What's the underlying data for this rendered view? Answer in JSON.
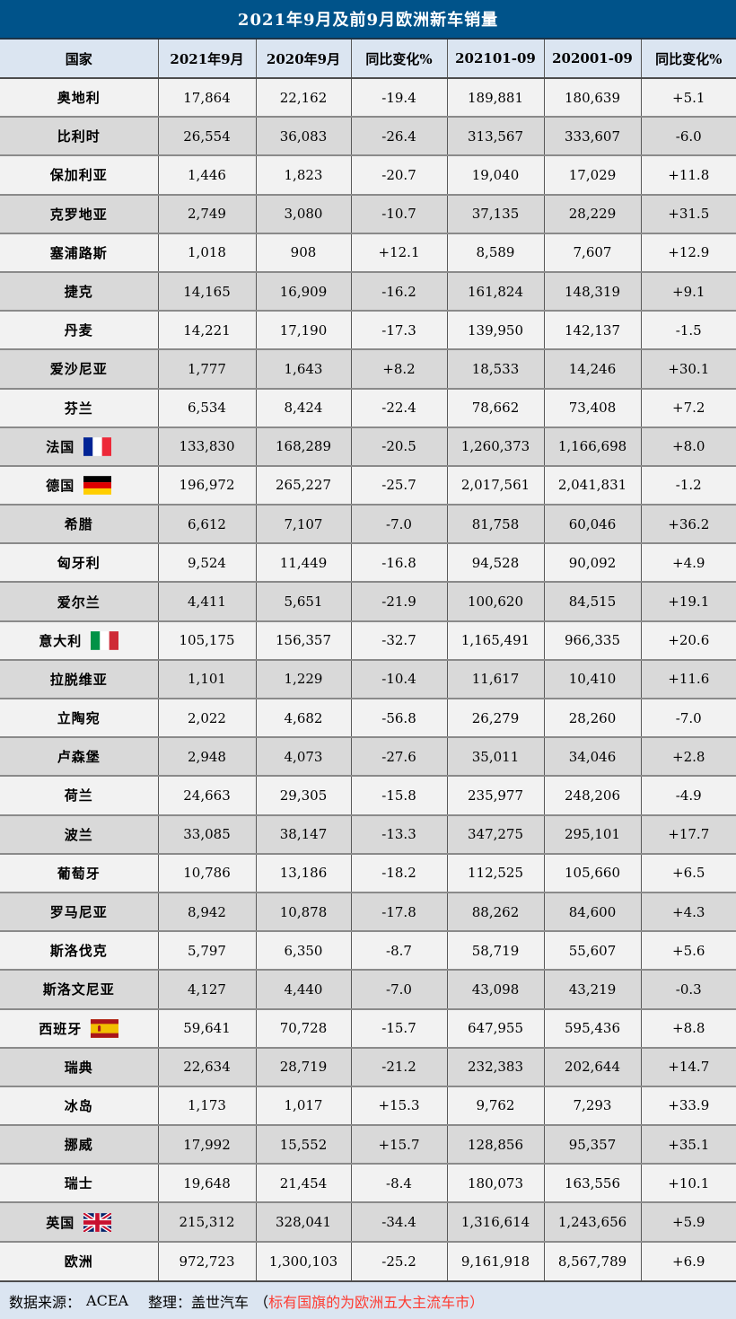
{
  "title": "2021年9月及前9月欧洲新车销量",
  "colors": {
    "title_bg": "#00538a",
    "header_bg": "#dbe5f1",
    "row_light": "#f2f2f2",
    "row_dark": "#d9d9d9",
    "highlight_red": "#fe3b31",
    "footer_bg": "#dbe5f1"
  },
  "table": {
    "headers": [
      "国家",
      "2021年9月",
      "2020年9月",
      "同比变化%",
      "202101-09",
      "202001-09",
      "同比变化%"
    ],
    "rows": [
      {
        "country": "奥地利",
        "flag": null,
        "values": [
          "17,864",
          "22,162",
          "-19.4",
          "189,881",
          "180,639",
          "+5.1"
        ],
        "red": []
      },
      {
        "country": "比利时",
        "flag": null,
        "values": [
          "26,554",
          "36,083",
          "-26.4",
          "313,567",
          "333,607",
          "-6.0"
        ],
        "red": [
          5
        ]
      },
      {
        "country": "保加利亚",
        "flag": null,
        "values": [
          "1,446",
          "1,823",
          "-20.7",
          "19,040",
          "17,029",
          "+11.8"
        ],
        "red": []
      },
      {
        "country": "克罗地亚",
        "flag": null,
        "values": [
          "2,749",
          "3,080",
          "-10.7",
          "37,135",
          "28,229",
          "+31.5"
        ],
        "red": []
      },
      {
        "country": "塞浦路斯",
        "flag": null,
        "values": [
          "1,018",
          "908",
          "+12.1",
          "8,589",
          "7,607",
          "+12.9"
        ],
        "red": [
          2
        ]
      },
      {
        "country": "捷克",
        "flag": null,
        "values": [
          "14,165",
          "16,909",
          "-16.2",
          "161,824",
          "148,319",
          "+9.1"
        ],
        "red": []
      },
      {
        "country": "丹麦",
        "flag": null,
        "values": [
          "14,221",
          "17,190",
          "-17.3",
          "139,950",
          "142,137",
          "-1.5"
        ],
        "red": [
          5
        ]
      },
      {
        "country": "爱沙尼亚",
        "flag": null,
        "values": [
          "1,777",
          "1,643",
          "+8.2",
          "18,533",
          "14,246",
          "+30.1"
        ],
        "red": [
          2
        ]
      },
      {
        "country": "芬兰",
        "flag": null,
        "values": [
          "6,534",
          "8,424",
          "-22.4",
          "78,662",
          "73,408",
          "+7.2"
        ],
        "red": []
      },
      {
        "country": "法国",
        "flag": "fr",
        "values": [
          "133,830",
          "168,289",
          "-20.5",
          "1,260,373",
          "1,166,698",
          "+8.0"
        ],
        "red": []
      },
      {
        "country": "德国",
        "flag": "de",
        "values": [
          "196,972",
          "265,227",
          "-25.7",
          "2,017,561",
          "2,041,831",
          "-1.2"
        ],
        "red": [
          5
        ]
      },
      {
        "country": "希腊",
        "flag": null,
        "values": [
          "6,612",
          "7,107",
          "-7.0",
          "81,758",
          "60,046",
          "+36.2"
        ],
        "red": []
      },
      {
        "country": "匈牙利",
        "flag": null,
        "values": [
          "9,524",
          "11,449",
          "-16.8",
          "94,528",
          "90,092",
          "+4.9"
        ],
        "red": []
      },
      {
        "country": "爱尔兰",
        "flag": null,
        "values": [
          "4,411",
          "5,651",
          "-21.9",
          "100,620",
          "84,515",
          "+19.1"
        ],
        "red": []
      },
      {
        "country": "意大利",
        "flag": "it",
        "values": [
          "105,175",
          "156,357",
          "-32.7",
          "1,165,491",
          "966,335",
          "+20.6"
        ],
        "red": []
      },
      {
        "country": "拉脱维亚",
        "flag": null,
        "values": [
          "1,101",
          "1,229",
          "-10.4",
          "11,617",
          "10,410",
          "+11.6"
        ],
        "red": []
      },
      {
        "country": "立陶宛",
        "flag": null,
        "values": [
          "2,022",
          "4,682",
          "-56.8",
          "26,279",
          "28,260",
          "-7.0"
        ],
        "red": [
          5
        ]
      },
      {
        "country": "卢森堡",
        "flag": null,
        "values": [
          "2,948",
          "4,073",
          "-27.6",
          "35,011",
          "34,046",
          "+2.8"
        ],
        "red": []
      },
      {
        "country": "荷兰",
        "flag": null,
        "values": [
          "24,663",
          "29,305",
          "-15.8",
          "235,977",
          "248,206",
          "-4.9"
        ],
        "red": [
          5
        ]
      },
      {
        "country": "波兰",
        "flag": null,
        "values": [
          "33,085",
          "38,147",
          "-13.3",
          "347,275",
          "295,101",
          "+17.7"
        ],
        "red": []
      },
      {
        "country": "葡萄牙",
        "flag": null,
        "values": [
          "10,786",
          "13,186",
          "-18.2",
          "112,525",
          "105,660",
          "+6.5"
        ],
        "red": []
      },
      {
        "country": "罗马尼亚",
        "flag": null,
        "values": [
          "8,942",
          "10,878",
          "-17.8",
          "88,262",
          "84,600",
          "+4.3"
        ],
        "red": []
      },
      {
        "country": "斯洛伐克",
        "flag": null,
        "values": [
          "5,797",
          "6,350",
          "-8.7",
          "58,719",
          "55,607",
          "+5.6"
        ],
        "red": []
      },
      {
        "country": "斯洛文尼亚",
        "flag": null,
        "values": [
          "4,127",
          "4,440",
          "-7.0",
          "43,098",
          "43,219",
          "-0.3"
        ],
        "red": [
          5
        ]
      },
      {
        "country": "西班牙",
        "flag": "es",
        "values": [
          "59,641",
          "70,728",
          "-15.7",
          "647,955",
          "595,436",
          "+8.8"
        ],
        "red": []
      },
      {
        "country": "瑞典",
        "flag": null,
        "values": [
          "22,634",
          "28,719",
          "-21.2",
          "232,383",
          "202,644",
          "+14.7"
        ],
        "red": []
      },
      {
        "country": "冰岛",
        "flag": null,
        "values": [
          "1,173",
          "1,017",
          "+15.3",
          "9,762",
          "7,293",
          "+33.9"
        ],
        "red": [
          2
        ]
      },
      {
        "country": "挪威",
        "flag": null,
        "values": [
          "17,992",
          "15,552",
          "+15.7",
          "128,856",
          "95,357",
          "+35.1"
        ],
        "red": [
          2
        ]
      },
      {
        "country": "瑞士",
        "flag": null,
        "values": [
          "19,648",
          "21,454",
          "-8.4",
          "180,073",
          "163,556",
          "+10.1"
        ],
        "red": []
      },
      {
        "country": "英国",
        "flag": "gb",
        "values": [
          "215,312",
          "328,041",
          "-34.4",
          "1,316,614",
          "1,243,656",
          "+5.9"
        ],
        "red": []
      },
      {
        "country": "欧洲",
        "flag": null,
        "values": [
          "972,723",
          "1,300,103",
          "-25.2",
          "9,161,918",
          "8,567,789",
          "+6.9"
        ],
        "red": []
      }
    ]
  },
  "footer": {
    "source_label": "数据来源：",
    "source_value": "ACEA",
    "editor_label": "整理：盖世汽车",
    "note_open": "（",
    "note_text": "标有国旗的为欧洲五大主流车市",
    "note_close": "）"
  }
}
